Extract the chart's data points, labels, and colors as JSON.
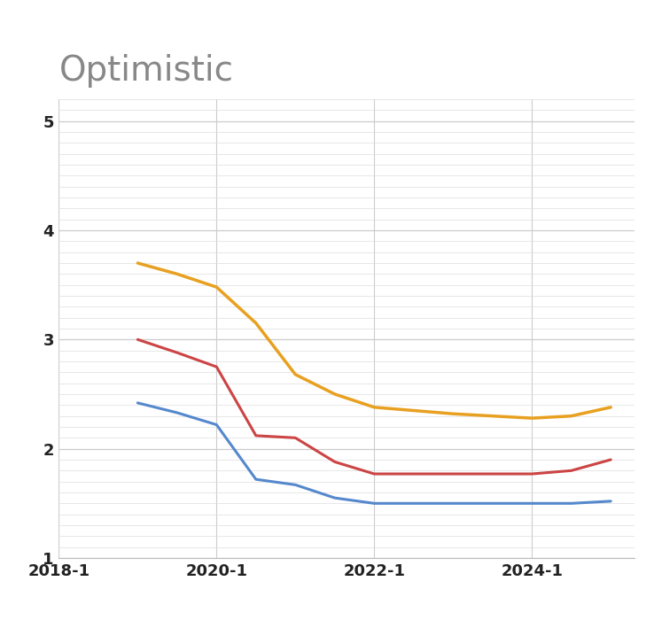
{
  "title": "Optimistic",
  "title_color": "#888888",
  "title_fontsize": 28,
  "background_color": "#ffffff",
  "xlim": [
    2018.0,
    2025.3
  ],
  "ylim": [
    1.0,
    5.2
  ],
  "yticks": [
    1,
    2,
    3,
    4,
    5
  ],
  "xtick_labels": [
    "2018-1",
    "2020-1",
    "2022-1",
    "2024-1"
  ],
  "xtick_positions": [
    2018.0,
    2020.0,
    2022.0,
    2024.0
  ],
  "grid_color": "#cccccc",
  "minor_grid_color": "#dddddd",
  "series": [
    {
      "name": "blue",
      "color": "#5588cc",
      "linewidth": 2.2,
      "x": [
        2019.0,
        2019.5,
        2020.0,
        2020.5,
        2021.0,
        2021.5,
        2022.0,
        2022.5,
        2023.0,
        2023.5,
        2024.0,
        2024.5,
        2025.0
      ],
      "y": [
        2.42,
        2.33,
        2.22,
        1.72,
        1.67,
        1.55,
        1.5,
        1.5,
        1.5,
        1.5,
        1.5,
        1.5,
        1.52
      ]
    },
    {
      "name": "red",
      "color": "#cc4444",
      "linewidth": 2.2,
      "x": [
        2019.0,
        2019.5,
        2020.0,
        2020.5,
        2021.0,
        2021.5,
        2022.0,
        2022.5,
        2023.0,
        2023.5,
        2024.0,
        2024.5,
        2025.0
      ],
      "y": [
        3.0,
        2.88,
        2.75,
        2.12,
        2.1,
        1.88,
        1.77,
        1.77,
        1.77,
        1.77,
        1.77,
        1.8,
        1.9
      ]
    },
    {
      "name": "yellow",
      "color": "#e8a020",
      "linewidth": 2.5,
      "x": [
        2019.0,
        2019.5,
        2020.0,
        2020.5,
        2021.0,
        2021.5,
        2022.0,
        2022.5,
        2023.0,
        2023.5,
        2024.0,
        2024.5,
        2025.0
      ],
      "y": [
        3.7,
        3.6,
        3.48,
        3.15,
        2.68,
        2.5,
        2.38,
        2.35,
        2.32,
        2.3,
        2.28,
        2.3,
        2.38
      ]
    }
  ]
}
